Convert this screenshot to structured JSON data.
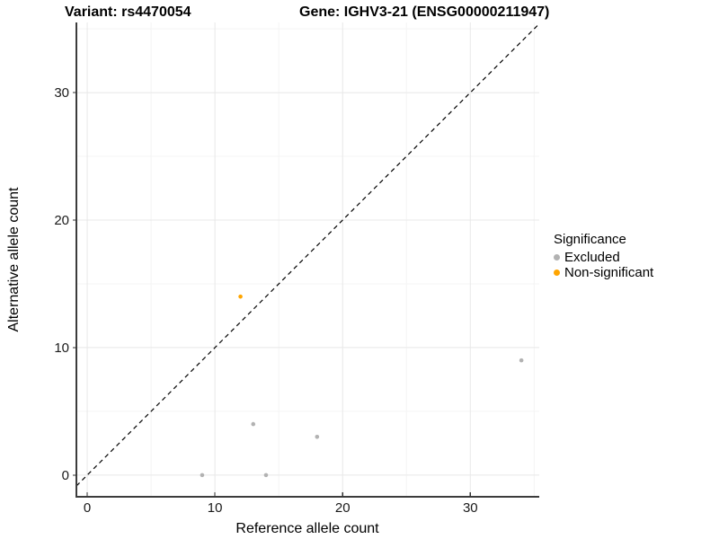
{
  "header": {
    "left_title": "Variant: rs4470054",
    "right_title": "Gene: IGHV3-21 (ENSG00000211947)"
  },
  "chart_data": {
    "type": "scatter",
    "title": "Variant: rs4470054 — Gene: IGHV3-21 (ENSG00000211947)",
    "xlabel": "Reference allele count",
    "ylabel": "Alternative allele count",
    "xlim": [
      -0.85,
      35.4
    ],
    "ylim": [
      -1.7,
      35.5
    ],
    "xticks": [
      0,
      10,
      20,
      30
    ],
    "yticks": [
      0,
      10,
      20,
      30
    ],
    "minor_xticks": [
      5,
      15,
      25,
      35
    ],
    "minor_yticks": [
      5,
      15,
      25,
      35
    ],
    "grid": true,
    "identity_line": {
      "equation": "y = x",
      "style": "dashed",
      "color": "#000000"
    },
    "series": [
      {
        "name": "Excluded",
        "color": "#b2b2b2",
        "points": [
          [
            9,
            0
          ],
          [
            13,
            4
          ],
          [
            14,
            0
          ],
          [
            18,
            3
          ],
          [
            34,
            9
          ]
        ]
      },
      {
        "name": "Non-significant",
        "color": "#ffa500",
        "points": [
          [
            12,
            14
          ]
        ]
      }
    ],
    "legend": {
      "title": "Significance",
      "position": "right"
    }
  },
  "colors": {
    "background": "#ffffff",
    "axis_line": "#3c3c3c",
    "major_grid": "#e8e8e8",
    "minor_grid": "#f4f4f4",
    "tick_text": "#1a1a1a",
    "excluded": "#b2b2b2",
    "non_significant": "#ffa500"
  }
}
